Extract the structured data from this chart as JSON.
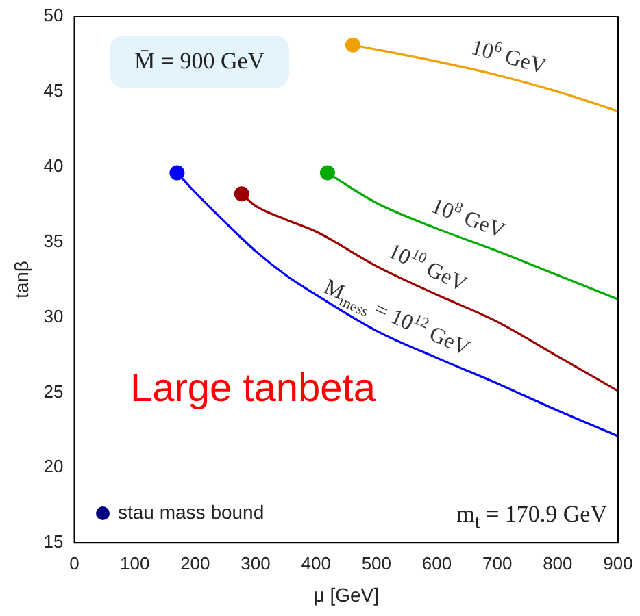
{
  "chart_data": {
    "type": "line",
    "xlabel": "μ [GeV]",
    "ylabel": "tanβ",
    "xlim": [
      0,
      900
    ],
    "ylim": [
      15,
      50
    ],
    "xticks": [
      0,
      100,
      200,
      300,
      400,
      500,
      600,
      700,
      800,
      900
    ],
    "yticks": [
      15,
      20,
      25,
      30,
      35,
      40,
      45,
      50
    ],
    "marker": "none",
    "annotations": [
      "M̄ = 900 GeV",
      "m$_{t}$ = 170.9 GeV",
      "Large tanbeta",
      "stau mass bound"
    ],
    "series": [
      {
        "name": "M$_{mess}$ = 10$^{12}$ GeV",
        "color": "#0000ff",
        "x": [
          170,
          200,
          250,
          300,
          350,
          400,
          500,
          600,
          700,
          800,
          900
        ],
        "values": [
          39.6,
          38.3,
          36.3,
          34.4,
          32.8,
          31.5,
          29.1,
          27.3,
          25.6,
          23.8,
          22.1
        ]
      },
      {
        "name": "10$^{10}$ GeV",
        "color": "#990000",
        "x": [
          277,
          300,
          350,
          400,
          500,
          600,
          700,
          800,
          900
        ],
        "values": [
          38.2,
          37.4,
          36.5,
          35.7,
          33.4,
          31.5,
          29.7,
          27.4,
          25.1
        ]
      },
      {
        "name": "10$^{8}$ GeV",
        "color": "#00aa00",
        "x": [
          419,
          500,
          600,
          700,
          800,
          900
        ],
        "values": [
          39.6,
          37.6,
          35.9,
          34.4,
          32.8,
          31.2
        ]
      },
      {
        "name": "10$^{6}$ GeV",
        "color": "#f0a000",
        "x": [
          461,
          600,
          700,
          800,
          900
        ],
        "values": [
          48.1,
          47.0,
          46.1,
          45.0,
          43.7
        ]
      },
      {
        "type": "scatter",
        "marker": "circle",
        "color": "#000080",
        "colors": [
          "#0000ff",
          "#990000",
          "#00aa00",
          "#f0a000"
        ],
        "x": [
          170,
          277,
          419,
          461
        ],
        "values": [
          39.6,
          38.2,
          39.6,
          48.1
        ]
      }
    ]
  }
}
